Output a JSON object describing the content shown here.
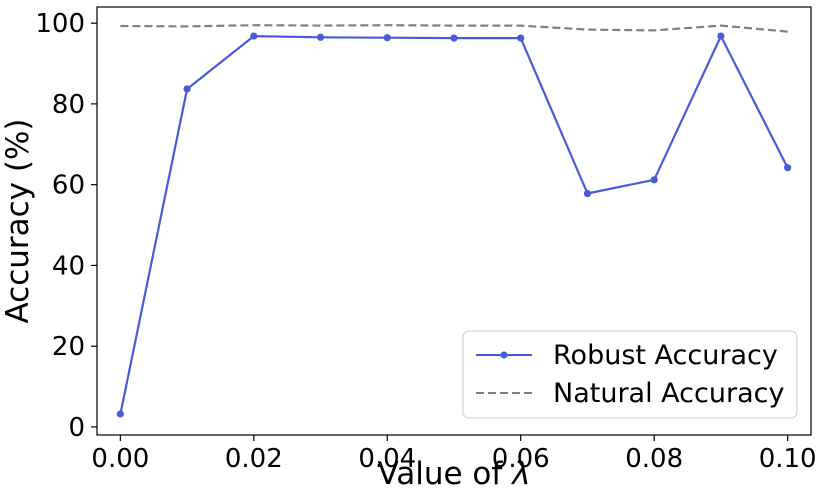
{
  "chart_data": {
    "type": "line",
    "xlabel": "Value of",
    "xlabel_symbol": "λ",
    "ylabel": "Accuracy (%)",
    "x": [
      0.0,
      0.01,
      0.02,
      0.03,
      0.04,
      0.05,
      0.06,
      0.07,
      0.08,
      0.09,
      0.1
    ],
    "xlim": [
      -0.0035,
      0.1035
    ],
    "ylim": [
      -2,
      104
    ],
    "x_ticks": [
      "0.00",
      "0.02",
      "0.04",
      "0.06",
      "0.08",
      "0.10"
    ],
    "y_ticks": [
      "0",
      "20",
      "40",
      "60",
      "80",
      "100"
    ],
    "grid": false,
    "legend_position": "bottom-right",
    "series": [
      {
        "name": "Robust Accuracy",
        "style": "solid-with-markers",
        "color": "#4a5bd9",
        "values": [
          3.2,
          83.7,
          96.8,
          96.5,
          96.4,
          96.3,
          96.3,
          57.8,
          61.2,
          96.8,
          64.2
        ]
      },
      {
        "name": "Natural Accuracy",
        "style": "dashed",
        "color": "#808080",
        "values": [
          99.3,
          99.2,
          99.5,
          99.4,
          99.5,
          99.4,
          99.4,
          98.4,
          98.2,
          99.4,
          97.9
        ]
      }
    ]
  }
}
